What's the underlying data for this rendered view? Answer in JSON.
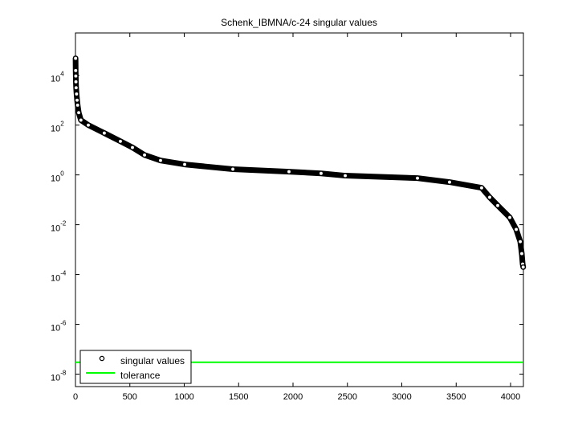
{
  "chart_data": {
    "type": "scatter",
    "title": "Schenk_IBMNA/c-24 singular values",
    "xlabel": "",
    "ylabel": "",
    "xlim": [
      0,
      4118
    ],
    "ylim_log10": [
      -8.5,
      5.7
    ],
    "yscale": "log",
    "grid": false,
    "legend_placement": "bottom-left",
    "x_ticks": [
      "0",
      "500",
      "1000",
      "1500",
      "2000",
      "2500",
      "3000",
      "3500",
      "4000"
    ],
    "y_ticks": [
      {
        "base": "10",
        "exp": "4",
        "log10": 4
      },
      {
        "base": "10",
        "exp": "2",
        "log10": 2
      },
      {
        "base": "10",
        "exp": "0",
        "log10": 0
      },
      {
        "base": "10",
        "exp": "-2",
        "log10": -2
      },
      {
        "base": "10",
        "exp": "-4",
        "log10": -4
      },
      {
        "base": "10",
        "exp": "-6",
        "log10": -6
      },
      {
        "base": "10",
        "exp": "-8",
        "log10": -8
      }
    ],
    "series": [
      {
        "name": "singular values",
        "color": "#000000",
        "marker": "circle",
        "x": [
          1,
          2,
          3,
          4,
          6,
          10,
          15,
          20,
          30,
          50,
          118,
          265,
          413,
          524,
          635,
          782,
          1004,
          1447,
          1963,
          2258,
          2480,
          3144,
          3439,
          3734,
          3808,
          3882,
          3993,
          4052,
          4089,
          4103,
          4111,
          4116
        ],
        "log10_y": [
          4.68,
          4.19,
          3.97,
          3.74,
          3.5,
          3.25,
          3.0,
          2.8,
          2.5,
          2.2,
          2.0,
          1.68,
          1.35,
          1.1,
          0.8,
          0.58,
          0.42,
          0.23,
          0.13,
          0.06,
          -0.03,
          -0.13,
          -0.29,
          -0.52,
          -0.9,
          -1.23,
          -1.71,
          -2.19,
          -2.68,
          -3.16,
          -3.58,
          -3.7
        ]
      },
      {
        "name": "tolerance",
        "color": "#00ff00",
        "type": "hline",
        "value": 3e-08
      }
    ]
  }
}
